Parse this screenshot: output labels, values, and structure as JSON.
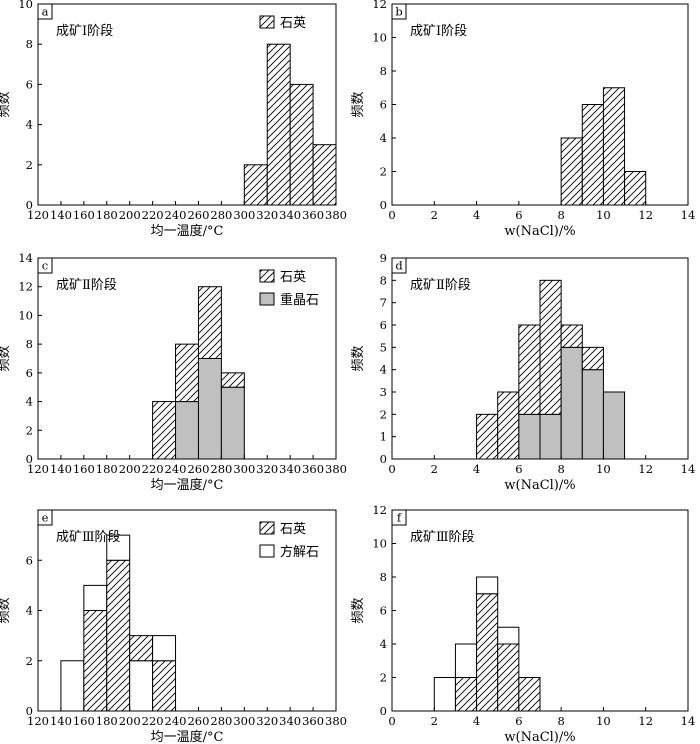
{
  "chart_data": [
    {
      "panel": "a",
      "type": "bar",
      "stage": "成矿Ⅰ阶段",
      "xlabel": "均一温度/°C",
      "ylabel": "频数",
      "xlim": [
        120,
        380
      ],
      "ylim": [
        0,
        10
      ],
      "xticks": [
        120,
        140,
        160,
        180,
        200,
        220,
        240,
        260,
        280,
        300,
        320,
        340,
        360,
        380
      ],
      "yticks": [
        0,
        2,
        4,
        6,
        8,
        10
      ],
      "legend": [
        {
          "name": "石英",
          "fill": "hatch"
        }
      ],
      "bins": [
        {
          "from": 300,
          "to": 320,
          "segments": [
            {
              "name": "石英",
              "value": 2,
              "fill": "hatch"
            }
          ]
        },
        {
          "from": 320,
          "to": 340,
          "segments": [
            {
              "name": "石英",
              "value": 8,
              "fill": "hatch"
            }
          ]
        },
        {
          "from": 340,
          "to": 360,
          "segments": [
            {
              "name": "石英",
              "value": 6,
              "fill": "hatch"
            }
          ]
        },
        {
          "from": 360,
          "to": 380,
          "segments": [
            {
              "name": "石英",
              "value": 3,
              "fill": "hatch"
            }
          ]
        }
      ]
    },
    {
      "panel": "b",
      "type": "bar",
      "stage": "成矿Ⅰ阶段",
      "xlabel": "w(NaCl)/%",
      "ylabel": "频数",
      "xlim": [
        0,
        14
      ],
      "ylim": [
        0,
        12
      ],
      "xticks": [
        0,
        2,
        4,
        6,
        8,
        10,
        12,
        14
      ],
      "yticks": [
        0,
        2,
        4,
        6,
        8,
        10,
        12
      ],
      "legend": [],
      "bins": [
        {
          "from": 8,
          "to": 9,
          "segments": [
            {
              "name": "石英",
              "value": 4,
              "fill": "hatch"
            }
          ]
        },
        {
          "from": 9,
          "to": 10,
          "segments": [
            {
              "name": "石英",
              "value": 6,
              "fill": "hatch"
            }
          ]
        },
        {
          "from": 10,
          "to": 11,
          "segments": [
            {
              "name": "石英",
              "value": 7,
              "fill": "hatch"
            }
          ]
        },
        {
          "from": 11,
          "to": 12,
          "segments": [
            {
              "name": "石英",
              "value": 2,
              "fill": "hatch"
            }
          ]
        }
      ]
    },
    {
      "panel": "c",
      "type": "bar",
      "stage": "成矿Ⅱ阶段",
      "xlabel": "均一温度/°C",
      "ylabel": "频数",
      "xlim": [
        120,
        380
      ],
      "ylim": [
        0,
        14
      ],
      "xticks": [
        120,
        140,
        160,
        180,
        200,
        220,
        240,
        260,
        280,
        300,
        320,
        340,
        360,
        380
      ],
      "yticks": [
        0,
        2,
        4,
        6,
        8,
        10,
        12,
        14
      ],
      "legend": [
        {
          "name": "石英",
          "fill": "hatch"
        },
        {
          "name": "重晶石",
          "fill": "gray"
        }
      ],
      "bins": [
        {
          "from": 220,
          "to": 240,
          "segments": [
            {
              "name": "石英",
              "value": 4,
              "fill": "hatch"
            }
          ]
        },
        {
          "from": 240,
          "to": 260,
          "segments": [
            {
              "name": "重晶石",
              "value": 4,
              "fill": "gray"
            },
            {
              "name": "石英",
              "value": 4,
              "fill": "hatch"
            }
          ]
        },
        {
          "from": 260,
          "to": 280,
          "segments": [
            {
              "name": "重晶石",
              "value": 7,
              "fill": "gray"
            },
            {
              "name": "石英",
              "value": 5,
              "fill": "hatch"
            }
          ]
        },
        {
          "from": 280,
          "to": 300,
          "segments": [
            {
              "name": "重晶石",
              "value": 5,
              "fill": "gray"
            },
            {
              "name": "石英",
              "value": 1,
              "fill": "hatch"
            }
          ]
        }
      ]
    },
    {
      "panel": "d",
      "type": "bar",
      "stage": "成矿Ⅱ阶段",
      "xlabel": "w(NaCl)/%",
      "ylabel": "频数",
      "xlim": [
        0,
        14
      ],
      "ylim": [
        0,
        9
      ],
      "xticks": [
        0,
        2,
        4,
        6,
        8,
        10,
        12,
        14
      ],
      "yticks": [
        0,
        1,
        2,
        3,
        4,
        5,
        6,
        7,
        8,
        9
      ],
      "legend": [],
      "bins": [
        {
          "from": 4,
          "to": 5,
          "segments": [
            {
              "name": "石英",
              "value": 2,
              "fill": "hatch"
            }
          ]
        },
        {
          "from": 5,
          "to": 6,
          "segments": [
            {
              "name": "石英",
              "value": 3,
              "fill": "hatch"
            }
          ]
        },
        {
          "from": 6,
          "to": 7,
          "segments": [
            {
              "name": "重晶石",
              "value": 2,
              "fill": "gray"
            },
            {
              "name": "石英",
              "value": 4,
              "fill": "hatch"
            }
          ]
        },
        {
          "from": 7,
          "to": 8,
          "segments": [
            {
              "name": "重晶石",
              "value": 2,
              "fill": "gray"
            },
            {
              "name": "石英",
              "value": 6,
              "fill": "hatch"
            }
          ]
        },
        {
          "from": 8,
          "to": 9,
          "segments": [
            {
              "name": "重晶石",
              "value": 5,
              "fill": "gray"
            },
            {
              "name": "石英",
              "value": 1,
              "fill": "hatch"
            }
          ]
        },
        {
          "from": 9,
          "to": 10,
          "segments": [
            {
              "name": "重晶石",
              "value": 4,
              "fill": "gray"
            },
            {
              "name": "石英",
              "value": 1,
              "fill": "hatch"
            }
          ]
        },
        {
          "from": 10,
          "to": 11,
          "segments": [
            {
              "name": "重晶石",
              "value": 3,
              "fill": "gray"
            }
          ]
        }
      ]
    },
    {
      "panel": "e",
      "type": "bar",
      "stage": "成矿Ⅲ阶段",
      "xlabel": "均一温度/°C",
      "ylabel": "频数",
      "xlim": [
        120,
        380
      ],
      "ylim": [
        0,
        8
      ],
      "xticks": [
        120,
        140,
        160,
        180,
        200,
        220,
        240,
        260,
        280,
        300,
        320,
        340,
        360,
        380
      ],
      "yticks": [
        0,
        2,
        4,
        6
      ],
      "legend": [
        {
          "name": "石英",
          "fill": "hatch"
        },
        {
          "name": "方解石",
          "fill": "white"
        }
      ],
      "bins": [
        {
          "from": 140,
          "to": 160,
          "segments": [
            {
              "name": "方解石",
              "value": 2,
              "fill": "white"
            }
          ]
        },
        {
          "from": 160,
          "to": 180,
          "segments": [
            {
              "name": "石英",
              "value": 4,
              "fill": "hatch"
            },
            {
              "name": "方解石",
              "value": 1,
              "fill": "white"
            }
          ]
        },
        {
          "from": 180,
          "to": 200,
          "segments": [
            {
              "name": "石英",
              "value": 6,
              "fill": "hatch"
            },
            {
              "name": "方解石",
              "value": 1,
              "fill": "white"
            }
          ]
        },
        {
          "from": 200,
          "to": 220,
          "segments": [
            {
              "name": "方解石",
              "value": 2,
              "fill": "white"
            },
            {
              "name": "石英",
              "value": 1,
              "fill": "hatch"
            }
          ]
        },
        {
          "from": 220,
          "to": 240,
          "segments": [
            {
              "name": "石英",
              "value": 2,
              "fill": "hatch"
            },
            {
              "name": "方解石",
              "value": 1,
              "fill": "white"
            }
          ]
        }
      ]
    },
    {
      "panel": "f",
      "type": "bar",
      "stage": "成矿Ⅲ阶段",
      "xlabel": "w(NaCl)/%",
      "ylabel": "频数",
      "xlim": [
        0,
        14
      ],
      "ylim": [
        0,
        12
      ],
      "xticks": [
        0,
        2,
        4,
        6,
        8,
        10,
        12,
        14
      ],
      "yticks": [
        0,
        2,
        4,
        6,
        8,
        10,
        12
      ],
      "legend": [],
      "bins": [
        {
          "from": 2,
          "to": 3,
          "segments": [
            {
              "name": "方解石",
              "value": 2,
              "fill": "white"
            }
          ]
        },
        {
          "from": 3,
          "to": 4,
          "segments": [
            {
              "name": "石英",
              "value": 2,
              "fill": "hatch"
            },
            {
              "name": "方解石",
              "value": 2,
              "fill": "white"
            }
          ]
        },
        {
          "from": 4,
          "to": 5,
          "segments": [
            {
              "name": "石英",
              "value": 7,
              "fill": "hatch"
            },
            {
              "name": "方解石",
              "value": 1,
              "fill": "white"
            }
          ]
        },
        {
          "from": 5,
          "to": 6,
          "segments": [
            {
              "name": "石英",
              "value": 4,
              "fill": "hatch"
            },
            {
              "name": "方解石",
              "value": 1,
              "fill": "white"
            }
          ]
        },
        {
          "from": 6,
          "to": 7,
          "segments": [
            {
              "name": "石英",
              "value": 2,
              "fill": "hatch"
            }
          ]
        }
      ]
    }
  ],
  "colors": {
    "gray": "#c0c0c0",
    "white": "#ffffff",
    "line": "#000000"
  }
}
